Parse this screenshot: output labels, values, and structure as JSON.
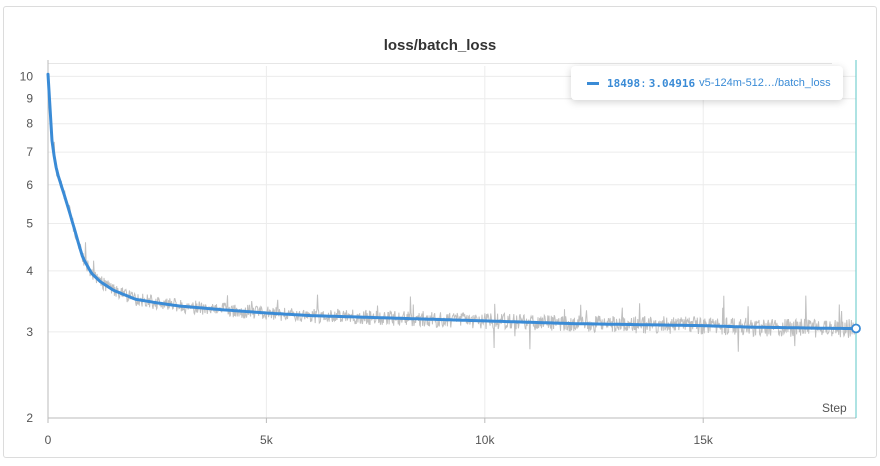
{
  "chart_data": {
    "type": "line",
    "title": "loss/batch_loss",
    "xlabel": "Step",
    "ylabel": "",
    "yscale": "log",
    "xlim": [
      0,
      18498
    ],
    "ylim": [
      2,
      10.5
    ],
    "grid": true,
    "x_ticks": [
      {
        "value": 0,
        "label": "0"
      },
      {
        "value": 5000,
        "label": "5k"
      },
      {
        "value": 10000,
        "label": "10k"
      },
      {
        "value": 15000,
        "label": "15k"
      }
    ],
    "y_ticks": [
      {
        "value": 2,
        "label": "2"
      },
      {
        "value": 3,
        "label": "3"
      },
      {
        "value": 4,
        "label": "4"
      },
      {
        "value": 5,
        "label": "5"
      },
      {
        "value": 6,
        "label": "6"
      },
      {
        "value": 7,
        "label": "7"
      },
      {
        "value": 8,
        "label": "8"
      },
      {
        "value": 9,
        "label": "9"
      },
      {
        "value": 10,
        "label": "10"
      }
    ],
    "series": [
      {
        "name": "v5-124m-512…/batch_loss",
        "color": "#3a8bd6",
        "raw_color": "#b5b5b5",
        "x": [
          0,
          100,
          200,
          300,
          500,
          700,
          800,
          1000,
          1200,
          1500,
          2000,
          2500,
          3000,
          3500,
          4000,
          5000,
          6000,
          7000,
          8000,
          9000,
          10000,
          11000,
          12000,
          13000,
          14000,
          15000,
          16000,
          17000,
          18000,
          18498
        ],
        "y": [
          10.1,
          7.2,
          6.4,
          6.0,
          5.25,
          4.55,
          4.25,
          3.95,
          3.8,
          3.65,
          3.5,
          3.44,
          3.39,
          3.36,
          3.33,
          3.28,
          3.24,
          3.22,
          3.2,
          3.18,
          3.16,
          3.14,
          3.12,
          3.11,
          3.1,
          3.09,
          3.07,
          3.06,
          3.05,
          3.049
        ]
      }
    ],
    "hover": {
      "step": "18498",
      "value": "3.04916",
      "series": "v5-124m-512…/batch_loss",
      "x": 18498,
      "y": 3.04916
    }
  }
}
